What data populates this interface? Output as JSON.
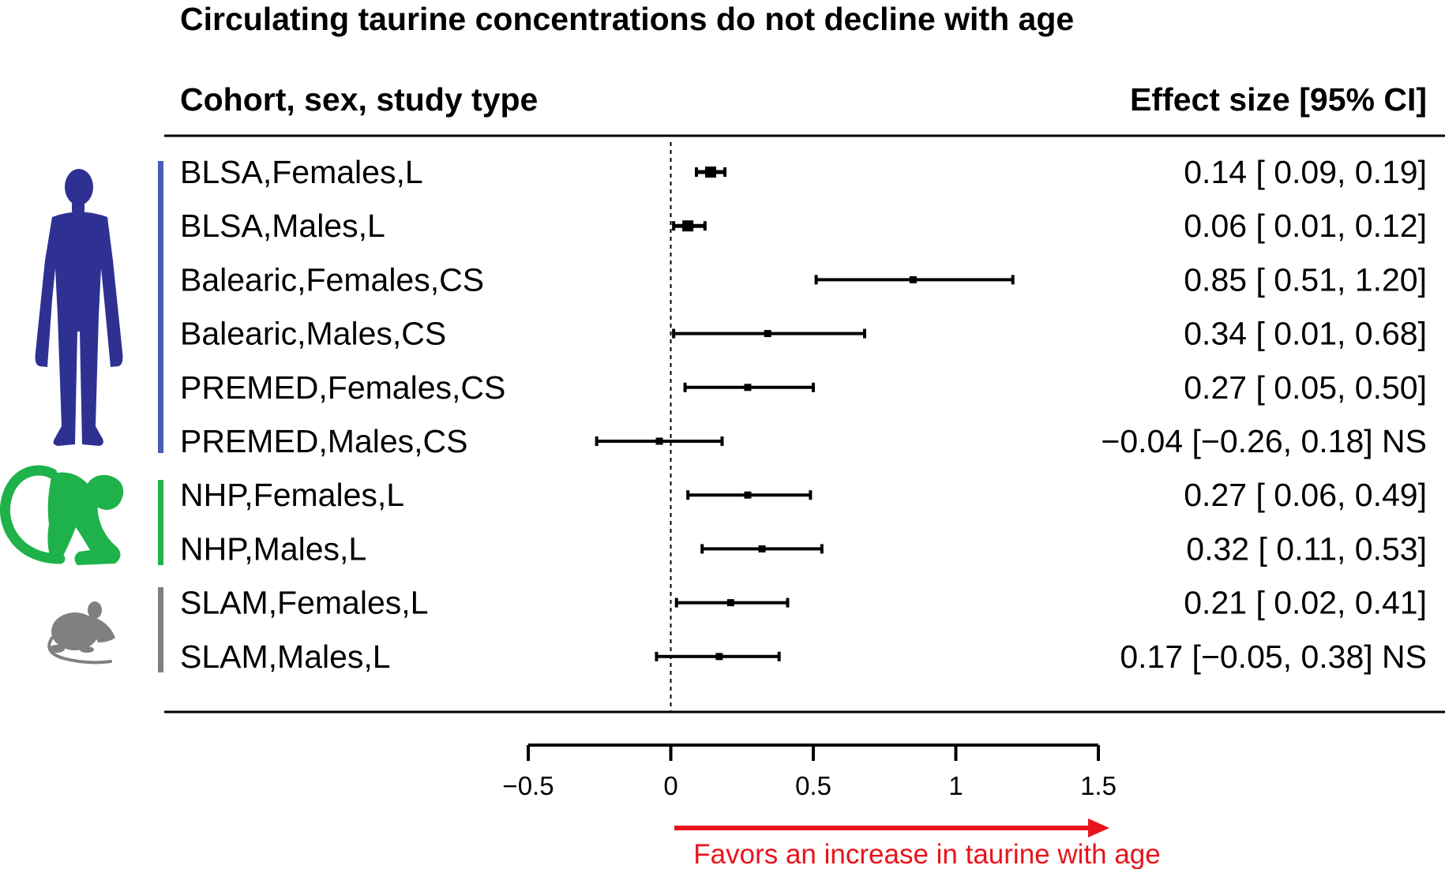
{
  "chart_data": {
    "type": "forest",
    "title": "Circulating taurine concentrations do not decline with age",
    "left_header": "Cohort, sex, study type",
    "right_header": "Effect size [95% CI]",
    "xlim": [
      -0.5,
      1.5
    ],
    "x_ticks": [
      -0.5,
      0,
      0.5,
      1,
      1.5
    ],
    "x_tick_labels": [
      "−0.5",
      "0",
      "0.5",
      "1",
      "1.5"
    ],
    "reference_line": 0,
    "annotation": "Favors an increase in taurine with age",
    "rows": [
      {
        "label": "BLSA,Females,L",
        "estimate": 0.14,
        "lower": 0.09,
        "upper": 0.19,
        "ci_text": "0.14 [ 0.09, 0.19]",
        "group": "human",
        "weight": "large"
      },
      {
        "label": "BLSA,Males,L",
        "estimate": 0.06,
        "lower": 0.01,
        "upper": 0.12,
        "ci_text": "0.06 [ 0.01, 0.12]",
        "group": "human",
        "weight": "large"
      },
      {
        "label": "Balearic,Females,CS",
        "estimate": 0.85,
        "lower": 0.51,
        "upper": 1.2,
        "ci_text": "0.85 [ 0.51, 1.20]",
        "group": "human",
        "weight": "small"
      },
      {
        "label": "Balearic,Males,CS",
        "estimate": 0.34,
        "lower": 0.01,
        "upper": 0.68,
        "ci_text": "0.34 [ 0.01, 0.68]",
        "group": "human",
        "weight": "small"
      },
      {
        "label": "PREMED,Females,CS",
        "estimate": 0.27,
        "lower": 0.05,
        "upper": 0.5,
        "ci_text": "0.27 [ 0.05, 0.50]",
        "group": "human",
        "weight": "small"
      },
      {
        "label": "PREMED,Males,CS",
        "estimate": -0.04,
        "lower": -0.26,
        "upper": 0.18,
        "ci_text": "−0.04 [−0.26, 0.18] NS",
        "group": "human",
        "weight": "small"
      },
      {
        "label": "NHP,Females,L",
        "estimate": 0.27,
        "lower": 0.06,
        "upper": 0.49,
        "ci_text": "0.27 [ 0.06, 0.49]",
        "group": "monkey",
        "weight": "small"
      },
      {
        "label": "NHP,Males,L",
        "estimate": 0.32,
        "lower": 0.11,
        "upper": 0.53,
        "ci_text": "0.32 [ 0.11, 0.53]",
        "group": "monkey",
        "weight": "small"
      },
      {
        "label": "SLAM,Females,L",
        "estimate": 0.21,
        "lower": 0.02,
        "upper": 0.41,
        "ci_text": "0.21 [ 0.02, 0.41]",
        "group": "mouse",
        "weight": "small"
      },
      {
        "label": "SLAM,Males,L",
        "estimate": 0.17,
        "lower": -0.05,
        "upper": 0.38,
        "ci_text": "0.17 [−0.05, 0.38] NS",
        "group": "mouse",
        "weight": "small"
      }
    ],
    "groups": [
      {
        "name": "human",
        "icon": "human-silhouette-icon",
        "color": "#2e3192"
      },
      {
        "name": "monkey",
        "icon": "monkey-silhouette-icon",
        "color": "#1fb24a"
      },
      {
        "name": "mouse",
        "icon": "mouse-silhouette-icon",
        "color": "#808080"
      }
    ],
    "annotation_color": "#e8141c"
  }
}
